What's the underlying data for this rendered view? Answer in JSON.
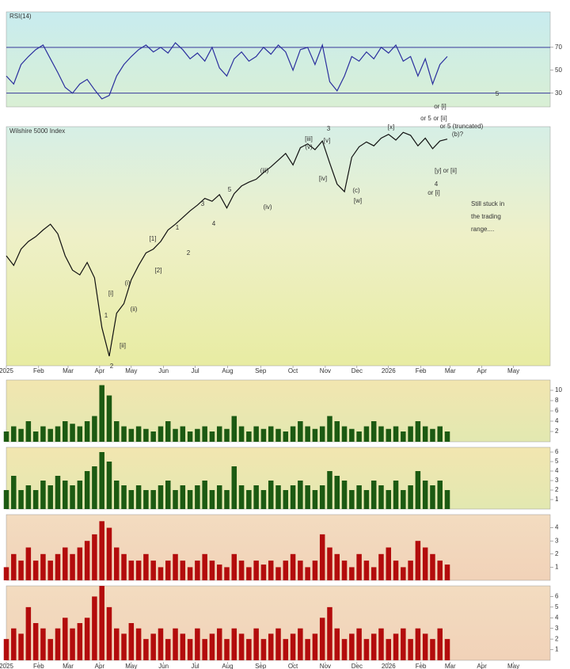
{
  "chart_data": [
    {
      "type": "line",
      "title": "RSI(14)",
      "color": "#2b2f9e",
      "ylim": [
        18,
        101
      ],
      "yticks": [
        30,
        50,
        70
      ],
      "levels": [
        70,
        30
      ],
      "xlim": [
        0,
        74
      ],
      "x": [
        0,
        1,
        2,
        3,
        4,
        5,
        6,
        7,
        8,
        9,
        10,
        11,
        12,
        13,
        14,
        15,
        16,
        17,
        18,
        19,
        20,
        21,
        22,
        23,
        24,
        25,
        26,
        27,
        28,
        29,
        30,
        31,
        32,
        33,
        34,
        35,
        36,
        37,
        38,
        39,
        40,
        41,
        42,
        43,
        44,
        45,
        46,
        47,
        48,
        49,
        50,
        51,
        52,
        53,
        54,
        55,
        56,
        57,
        58,
        59,
        60
      ],
      "values": [
        45,
        38,
        55,
        62,
        68,
        72,
        60,
        48,
        35,
        30,
        38,
        42,
        33,
        25,
        28,
        45,
        55,
        62,
        68,
        72,
        66,
        70,
        65,
        74,
        68,
        60,
        65,
        58,
        70,
        52,
        45,
        60,
        66,
        58,
        62,
        70,
        64,
        72,
        66,
        50,
        68,
        70,
        55,
        72,
        40,
        32,
        45,
        62,
        58,
        66,
        60,
        70,
        65,
        72,
        58,
        62,
        45,
        60,
        38,
        55,
        62
      ],
      "annotations": [
        "5"
      ]
    },
    {
      "type": "line",
      "title": "Wilshire 5000 Index",
      "color": "#111111",
      "ylim": [
        46000,
        71000
      ],
      "xlim": [
        0,
        74
      ],
      "xticks": [
        {
          "value": 0,
          "label": "2025"
        },
        {
          "value": 4.4,
          "label": "Feb"
        },
        {
          "value": 8.4,
          "label": "Mar"
        },
        {
          "value": 12.7,
          "label": "Apr"
        },
        {
          "value": 17,
          "label": "May"
        },
        {
          "value": 21.4,
          "label": "Jun"
        },
        {
          "value": 25.7,
          "label": "Jul"
        },
        {
          "value": 30.1,
          "label": "Aug"
        },
        {
          "value": 34.6,
          "label": "Sep"
        },
        {
          "value": 39,
          "label": "Oct"
        },
        {
          "value": 43.4,
          "label": "Nov"
        },
        {
          "value": 47.7,
          "label": "Dec"
        },
        {
          "value": 52,
          "label": "2026"
        },
        {
          "value": 56.4,
          "label": "Feb"
        },
        {
          "value": 60.4,
          "label": "Mar"
        },
        {
          "value": 64.7,
          "label": "Apr"
        },
        {
          "value": 69,
          "label": "May"
        }
      ],
      "x": [
        0,
        1,
        2,
        3,
        4,
        5,
        6,
        7,
        8,
        9,
        10,
        11,
        12,
        13,
        14,
        15,
        16,
        17,
        18,
        19,
        20,
        21,
        22,
        23,
        24,
        25,
        26,
        27,
        28,
        29,
        30,
        31,
        32,
        33,
        34,
        35,
        36,
        37,
        38,
        39,
        40,
        41,
        42,
        43,
        44,
        45,
        46,
        47,
        48,
        49,
        50,
        51,
        52,
        53,
        54,
        55,
        56,
        57,
        58,
        59,
        60
      ],
      "values": [
        57500,
        56500,
        58200,
        59000,
        59500,
        60200,
        60800,
        59800,
        57500,
        56000,
        55500,
        56800,
        55200,
        50000,
        47000,
        51500,
        52500,
        55000,
        56500,
        57800,
        58200,
        59000,
        60200,
        60800,
        61500,
        62200,
        62800,
        63500,
        63200,
        63900,
        62500,
        64000,
        64800,
        65200,
        65500,
        66200,
        66800,
        67500,
        68200,
        67000,
        68800,
        69200,
        68600,
        69500,
        67200,
        65000,
        64200,
        67800,
        68900,
        69400,
        69000,
        69800,
        70200,
        69600,
        70400,
        70100,
        69000,
        69800,
        68700,
        69500,
        69700
      ],
      "annotations": [
        "2",
        "1",
        "[i]",
        "[ii]",
        "(i)",
        "(ii)",
        "[1]",
        "[2]",
        "1",
        "2",
        "3",
        "4",
        "5",
        "(iii)",
        "(iv)",
        "[iii]",
        "(v)",
        "[v]",
        "[iv]",
        "3",
        "(c)",
        "[w]",
        "[x]",
        "4",
        "or [i]",
        "[y] or [ii]",
        "or [i]",
        "or 5",
        "or [ii]",
        "or 5 (truncated)",
        "(b)?",
        "Still stuck in the trading range...."
      ]
    },
    {
      "type": "bar",
      "color": "#1c5a12",
      "ylim": [
        0,
        12
      ],
      "yticks": [
        2,
        4,
        6,
        8,
        10
      ],
      "xlim": [
        0,
        74
      ],
      "x": [
        0,
        1,
        2,
        3,
        4,
        5,
        6,
        7,
        8,
        9,
        10,
        11,
        12,
        13,
        14,
        15,
        16,
        17,
        18,
        19,
        20,
        21,
        22,
        23,
        24,
        25,
        26,
        27,
        28,
        29,
        30,
        31,
        32,
        33,
        34,
        35,
        36,
        37,
        38,
        39,
        40,
        41,
        42,
        43,
        44,
        45,
        46,
        47,
        48,
        49,
        50,
        51,
        52,
        53,
        54,
        55,
        56,
        57,
        58,
        59,
        60
      ],
      "values": [
        2,
        3,
        2.5,
        4,
        2,
        3,
        2.5,
        3,
        4,
        3.5,
        3,
        4,
        5,
        11,
        9,
        4,
        3,
        2.5,
        3,
        2.5,
        2,
        3,
        4,
        2.5,
        3,
        2,
        2.5,
        3,
        2,
        3,
        2.5,
        5,
        3,
        2,
        3,
        2.5,
        3,
        2.5,
        2,
        3,
        4,
        3,
        2.5,
        3,
        5,
        4,
        3,
        2.5,
        2,
        3,
        4,
        3,
        2.5,
        3,
        2,
        3,
        4,
        3,
        2.5,
        3,
        2
      ]
    },
    {
      "type": "bar",
      "color": "#1c5a12",
      "ylim": [
        0,
        6.5
      ],
      "yticks": [
        1,
        2,
        3,
        4,
        5,
        6
      ],
      "xlim": [
        0,
        74
      ],
      "x": [
        0,
        1,
        2,
        3,
        4,
        5,
        6,
        7,
        8,
        9,
        10,
        11,
        12,
        13,
        14,
        15,
        16,
        17,
        18,
        19,
        20,
        21,
        22,
        23,
        24,
        25,
        26,
        27,
        28,
        29,
        30,
        31,
        32,
        33,
        34,
        35,
        36,
        37,
        38,
        39,
        40,
        41,
        42,
        43,
        44,
        45,
        46,
        47,
        48,
        49,
        50,
        51,
        52,
        53,
        54,
        55,
        56,
        57,
        58,
        59,
        60
      ],
      "values": [
        2,
        3.5,
        2,
        2.5,
        2,
        3,
        2.5,
        3.5,
        3,
        2.5,
        3,
        4,
        4.5,
        6,
        5,
        3,
        2.5,
        2,
        2.5,
        2,
        2,
        2.5,
        3,
        2,
        2.5,
        2,
        2.5,
        3,
        2,
        2.5,
        2,
        4.5,
        2.5,
        2,
        2.5,
        2,
        3,
        2.5,
        2,
        2.5,
        3,
        2.5,
        2,
        2.5,
        4,
        3.5,
        3,
        2,
        2.5,
        2,
        3,
        2.5,
        2,
        3,
        2,
        2.5,
        4,
        3,
        2.5,
        3,
        2
      ]
    },
    {
      "type": "bar",
      "color": "#b30c0c",
      "ylim": [
        0,
        5
      ],
      "yticks": [
        1,
        2,
        3,
        4
      ],
      "xlim": [
        0,
        74
      ],
      "x": [
        0,
        1,
        2,
        3,
        4,
        5,
        6,
        7,
        8,
        9,
        10,
        11,
        12,
        13,
        14,
        15,
        16,
        17,
        18,
        19,
        20,
        21,
        22,
        23,
        24,
        25,
        26,
        27,
        28,
        29,
        30,
        31,
        32,
        33,
        34,
        35,
        36,
        37,
        38,
        39,
        40,
        41,
        42,
        43,
        44,
        45,
        46,
        47,
        48,
        49,
        50,
        51,
        52,
        53,
        54,
        55,
        56,
        57,
        58,
        59,
        60
      ],
      "values": [
        1,
        2,
        1.5,
        2.5,
        1.5,
        2,
        1.5,
        2,
        2.5,
        2,
        2.5,
        3,
        3.5,
        4.5,
        4,
        2.5,
        2,
        1.5,
        1.5,
        2,
        1.5,
        1,
        1.5,
        2,
        1.5,
        1,
        1.5,
        2,
        1.5,
        1.2,
        1,
        2,
        1.5,
        1,
        1.5,
        1.2,
        1.5,
        1,
        1.5,
        2,
        1.5,
        1,
        1.5,
        3.5,
        2.5,
        2,
        1.5,
        1,
        2,
        1.5,
        1,
        2,
        2.5,
        1.5,
        1,
        1.5,
        3,
        2.5,
        2,
        1.5,
        1.2
      ]
    },
    {
      "type": "bar",
      "color": "#b30c0c",
      "ylim": [
        0,
        7
      ],
      "yticks": [
        1,
        2,
        3,
        4,
        5,
        6
      ],
      "xlim": [
        0,
        74
      ],
      "x": [
        0,
        1,
        2,
        3,
        4,
        5,
        6,
        7,
        8,
        9,
        10,
        11,
        12,
        13,
        14,
        15,
        16,
        17,
        18,
        19,
        20,
        21,
        22,
        23,
        24,
        25,
        26,
        27,
        28,
        29,
        30,
        31,
        32,
        33,
        34,
        35,
        36,
        37,
        38,
        39,
        40,
        41,
        42,
        43,
        44,
        45,
        46,
        47,
        48,
        49,
        50,
        51,
        52,
        53,
        54,
        55,
        56,
        57,
        58,
        59,
        60
      ],
      "values": [
        2,
        3,
        2.5,
        5,
        3.5,
        3,
        2,
        3,
        4,
        3,
        3.5,
        4,
        6,
        7,
        5,
        3,
        2.5,
        3.5,
        3,
        2,
        2.5,
        3,
        2,
        3,
        2.5,
        2,
        3,
        2,
        2.5,
        3,
        2,
        3,
        2.5,
        2,
        3,
        2,
        2.5,
        3,
        2,
        2.5,
        3,
        2,
        2.5,
        4,
        5,
        3,
        2,
        2.5,
        3,
        2,
        2.5,
        3,
        2,
        2.5,
        3,
        2,
        3,
        2.5,
        2,
        3,
        2
      ]
    }
  ]
}
